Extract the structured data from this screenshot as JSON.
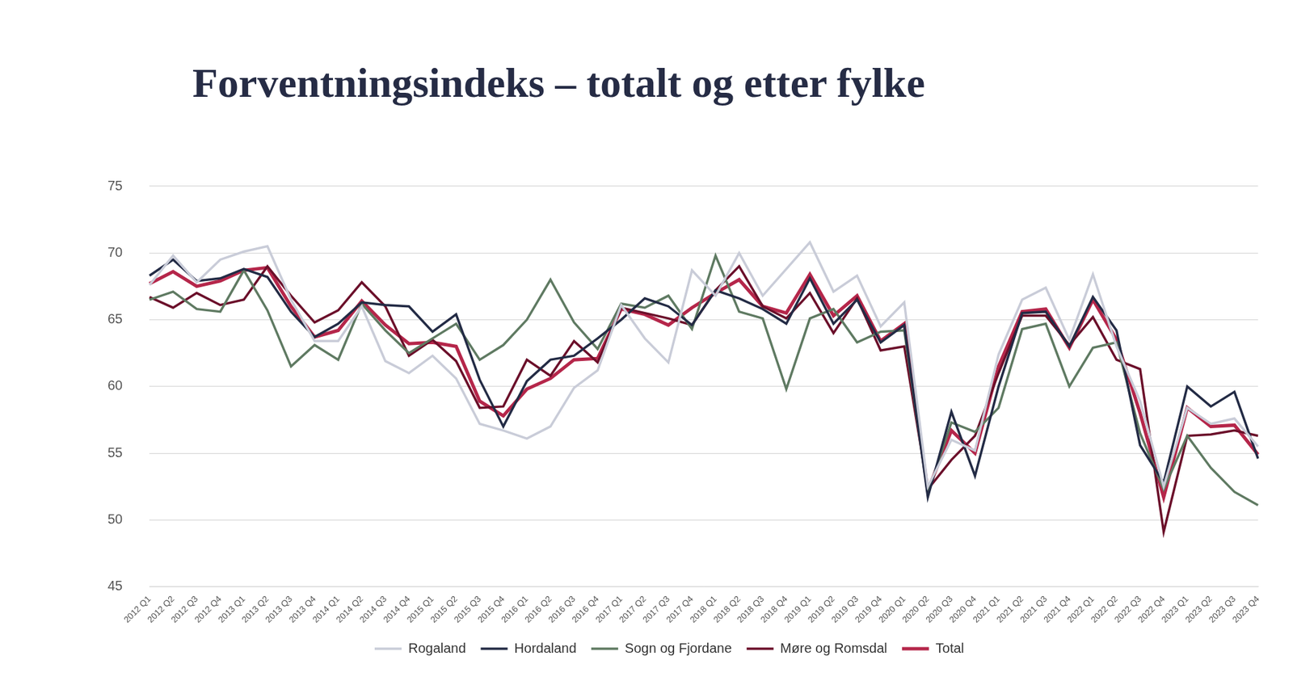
{
  "chart_data": {
    "type": "line",
    "title": "Forventningsindeks – totalt og etter fylke",
    "categories": [
      "2012 Q1",
      "2012 Q2",
      "2012 Q3",
      "2012 Q4",
      "2013 Q1",
      "2013 Q2",
      "2013 Q3",
      "2013 Q4",
      "2014 Q1",
      "2014 Q2",
      "2014 Q3",
      "2014 Q4",
      "2015 Q1",
      "2015 Q2",
      "2015 Q3",
      "2015 Q4",
      "2016 Q1",
      "2016 Q2",
      "2016 Q3",
      "2016 Q4",
      "2017 Q1",
      "2017 Q2",
      "2017 Q3",
      "2017 Q4",
      "2018 Q1",
      "2018 Q2",
      "2018 Q3",
      "2018 Q4",
      "2019 Q1",
      "2019 Q2",
      "2019 Q3",
      "2019 Q4",
      "2020 Q1",
      "2020 Q2",
      "2020 Q3",
      "2020 Q4",
      "2021 Q1",
      "2021 Q2",
      "2021 Q3",
      "2021 Q4",
      "2022 Q1",
      "2022 Q2",
      "2022 Q3",
      "2022 Q4",
      "2023 Q1",
      "2023 Q2",
      "2023 Q3",
      "2023 Q4"
    ],
    "series": [
      {
        "name": "Rogaland",
        "color": "#c9ccd8",
        "values": [
          67.6,
          69.8,
          67.8,
          69.5,
          70.1,
          70.5,
          66.5,
          63.4,
          63.4,
          66.0,
          61.9,
          61.0,
          62.3,
          60.6,
          57.2,
          56.7,
          56.1,
          57.0,
          59.9,
          61.2,
          66.1,
          63.6,
          61.8,
          68.7,
          66.8,
          70.0,
          66.8,
          68.8,
          70.8,
          67.1,
          68.3,
          64.5,
          66.3,
          52.5,
          56.0,
          55.2,
          62.4,
          66.5,
          67.4,
          63.5,
          68.4,
          63.0,
          58.9,
          52.5,
          58.4,
          57.2,
          57.6,
          55.5
        ]
      },
      {
        "name": "Hordaland",
        "color": "#232b45",
        "values": [
          68.3,
          69.5,
          67.9,
          68.1,
          68.8,
          68.2,
          65.6,
          63.7,
          64.7,
          66.3,
          66.1,
          66.0,
          64.1,
          65.4,
          60.5,
          57.0,
          60.4,
          62.0,
          62.3,
          63.6,
          65.0,
          66.6,
          66.0,
          64.6,
          67.2,
          66.6,
          65.8,
          64.7,
          68.1,
          64.7,
          66.5,
          63.3,
          64.6,
          51.7,
          58.1,
          53.3,
          60.0,
          65.5,
          65.6,
          63.0,
          66.7,
          64.2,
          55.6,
          52.8,
          60.0,
          58.5,
          59.6,
          54.6
        ]
      },
      {
        "name": "Sogn og Fjordane",
        "color": "#5f7a62",
        "values": [
          66.5,
          67.1,
          65.8,
          65.6,
          68.7,
          65.7,
          61.5,
          63.1,
          62.0,
          66.2,
          64.2,
          62.5,
          63.6,
          64.7,
          62.0,
          63.1,
          65.0,
          68.0,
          64.8,
          62.8,
          66.2,
          65.9,
          66.8,
          64.3,
          69.8,
          65.6,
          65.1,
          59.8,
          65.1,
          65.8,
          63.3,
          64.1,
          64.2,
          52.0,
          57.3,
          56.6,
          58.4,
          64.3,
          64.7,
          60.0,
          62.9,
          63.3,
          56.5,
          52.3,
          56.3,
          53.9,
          52.1,
          51.1
        ]
      },
      {
        "name": "Møre og Romsdal",
        "color": "#6b0f2a",
        "values": [
          66.7,
          65.9,
          67.0,
          66.1,
          66.5,
          69.0,
          66.8,
          64.8,
          65.7,
          67.8,
          66.0,
          62.3,
          63.5,
          61.9,
          58.4,
          58.5,
          62.0,
          60.8,
          63.4,
          61.8,
          65.9,
          65.5,
          65.1,
          64.6,
          67.2,
          69.0,
          66.0,
          65.1,
          67.0,
          64.0,
          66.6,
          62.7,
          63.0,
          52.3,
          54.5,
          56.3,
          61.0,
          65.3,
          65.3,
          63.1,
          65.2,
          62.0,
          61.3,
          49.1,
          56.3,
          56.4,
          56.7,
          56.3
        ]
      },
      {
        "name": "Total",
        "color": "#b5264a",
        "values": [
          67.7,
          68.6,
          67.5,
          67.9,
          68.7,
          68.9,
          66.0,
          63.7,
          64.2,
          66.4,
          64.6,
          63.2,
          63.3,
          63.0,
          58.9,
          57.8,
          59.8,
          60.6,
          62.0,
          62.1,
          65.8,
          65.4,
          64.6,
          65.9,
          67.0,
          68.0,
          66.0,
          65.5,
          68.4,
          65.3,
          66.8,
          63.4,
          64.7,
          52.2,
          56.7,
          55.0,
          61.5,
          65.6,
          65.8,
          62.9,
          66.5,
          63.5,
          58.0,
          51.7,
          58.4,
          57.0,
          57.1,
          54.9
        ]
      }
    ],
    "ylim": [
      45,
      75
    ],
    "yticks": [
      45,
      50,
      55,
      60,
      65,
      70,
      75
    ],
    "grid": true,
    "legend": "bottom"
  }
}
